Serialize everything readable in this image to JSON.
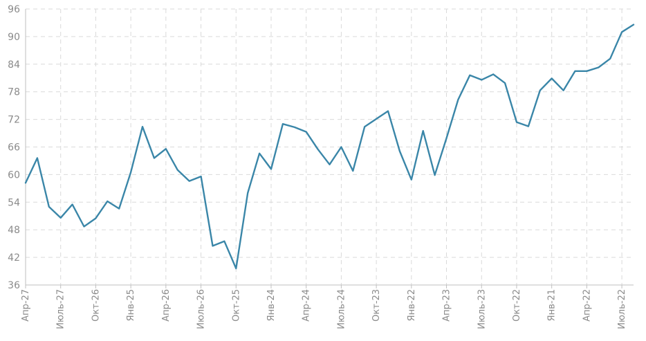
{
  "chart_data": {
    "type": "line",
    "title": "",
    "xlabel": "",
    "ylabel": "",
    "ylim": [
      36,
      96
    ],
    "yticks": [
      36,
      42,
      48,
      54,
      60,
      66,
      72,
      78,
      84,
      90,
      96
    ],
    "grid": true,
    "x_tick_labels": [
      "Апр-27",
      "Июль-27",
      "Окт-26",
      "Янв-25",
      "Апр-26",
      "Июль-26",
      "Окт-25",
      "Янв-24",
      "Апр-24",
      "Июль-24",
      "Окт-23",
      "Янв-22",
      "Апр-23",
      "Июль-23",
      "Окт-22",
      "Янв-21",
      "Апр-22",
      "Июль-22"
    ],
    "series": [
      {
        "color": "#3a86a8",
        "values": [
          58.2,
          63.6,
          53.0,
          50.6,
          53.5,
          48.7,
          50.5,
          54.2,
          52.6,
          60.5,
          70.4,
          63.6,
          65.6,
          61.0,
          58.6,
          59.6,
          44.5,
          45.5,
          39.6,
          56.0,
          64.6,
          61.2,
          71.0,
          70.3,
          69.3,
          65.5,
          62.2,
          66.0,
          60.8,
          70.4,
          72.1,
          73.8,
          65.1,
          58.9,
          69.5,
          59.9,
          67.9,
          76.3,
          81.6,
          80.6,
          81.8,
          79.9,
          71.4,
          70.5,
          78.3,
          80.9,
          78.3,
          82.5,
          82.5,
          83.3,
          85.2,
          91.0,
          92.6
        ]
      }
    ]
  }
}
